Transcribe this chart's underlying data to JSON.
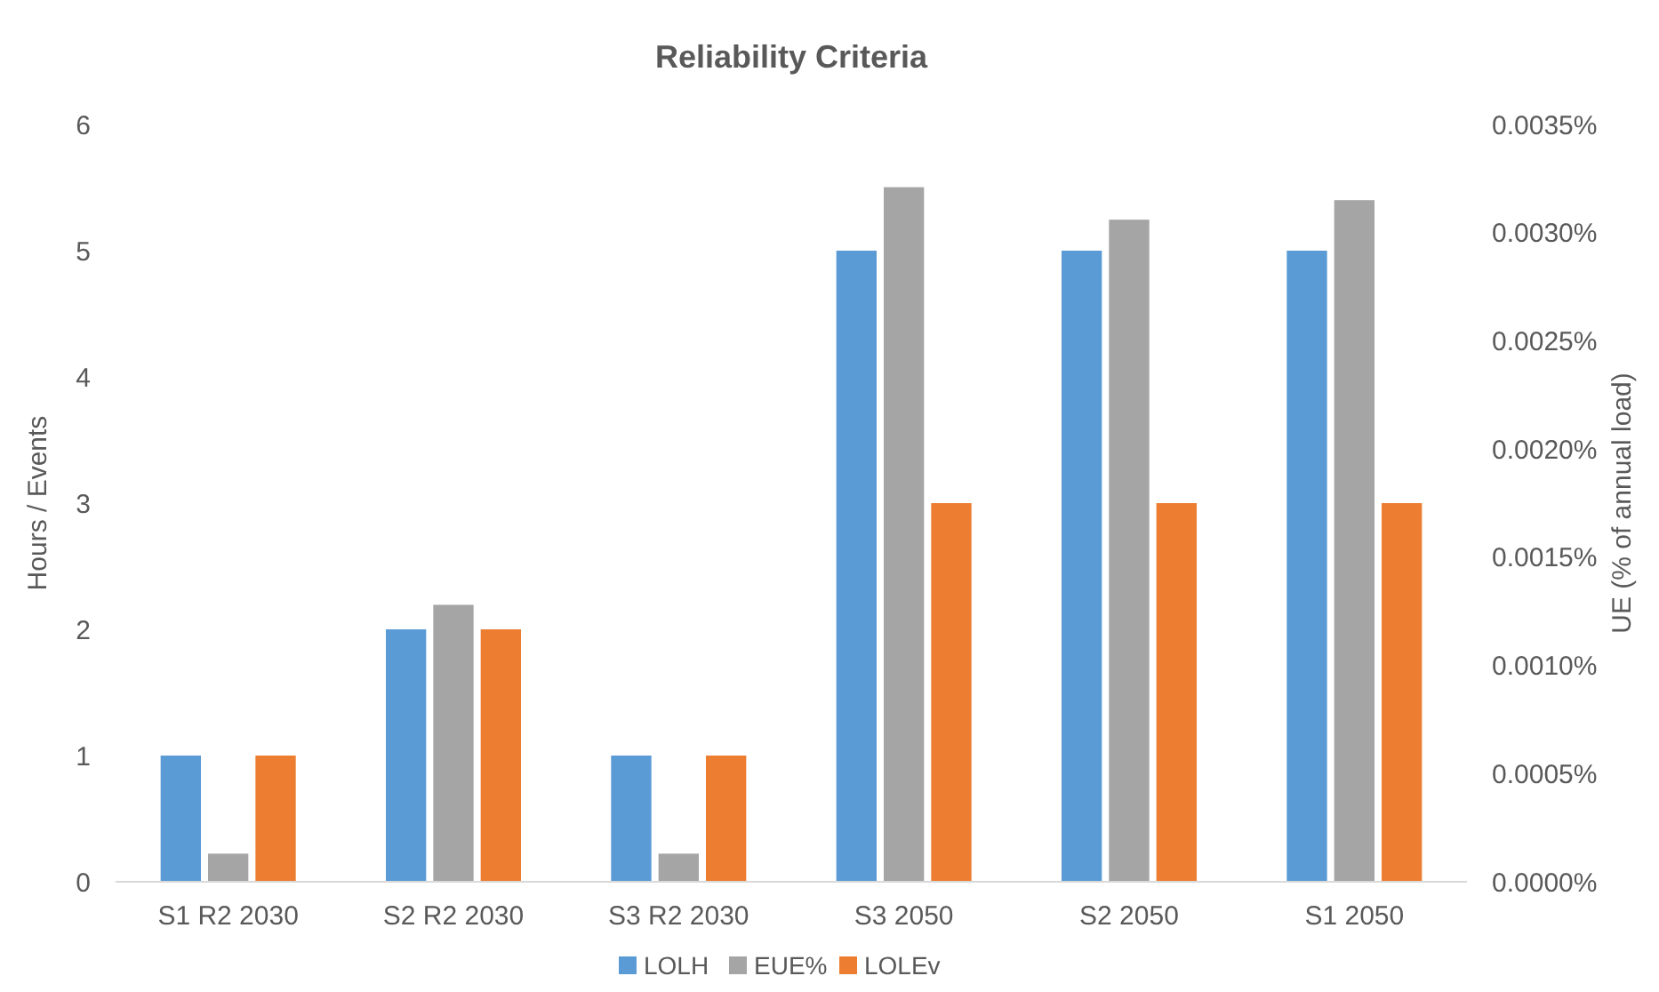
{
  "chart_data": {
    "type": "bar",
    "title": "Reliability Criteria",
    "ylabel": "Hours / Events",
    "y2label": "UE (% of annual load)",
    "categories": [
      "S1 R2 2030",
      "S2 R2 2030",
      "S3 R2 2030",
      "S3 2050",
      "S2 2050",
      "S1 2050"
    ],
    "series": [
      {
        "name": "LOLH",
        "color": "#5b9bd5",
        "values": [
          1,
          2,
          1,
          5,
          5,
          5
        ]
      },
      {
        "name": "EUE%",
        "color": "#a5a5a5",
        "axis": "y2",
        "values": [
          0.00013,
          0.00128,
          0.00013,
          0.00321,
          0.00306,
          0.00315
        ]
      },
      {
        "name": "LOLEv",
        "color": "#ed7d31",
        "values": [
          1,
          2,
          1,
          3,
          3,
          3
        ]
      }
    ],
    "ylim": [
      0,
      6
    ],
    "yticks": [
      0,
      1,
      2,
      3,
      4,
      5,
      6
    ],
    "y2lim": [
      0,
      0.0035
    ],
    "y2ticks": [
      {
        "value": 0,
        "label": "0.0000%"
      },
      {
        "value": 0.0005,
        "label": "0.0005%"
      },
      {
        "value": 0.001,
        "label": "0.0010%"
      },
      {
        "value": 0.0015,
        "label": "0.0015%"
      },
      {
        "value": 0.002,
        "label": "0.0020%"
      },
      {
        "value": 0.0025,
        "label": "0.0025%"
      },
      {
        "value": 0.003,
        "label": "0.0030%"
      },
      {
        "value": 0.0035,
        "label": "0.0035%"
      }
    ],
    "legend": "bottom",
    "grid": false
  }
}
